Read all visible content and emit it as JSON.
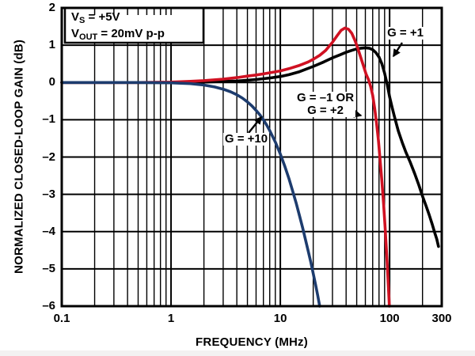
{
  "chart_data": {
    "type": "line",
    "title": "",
    "x_scale": "log",
    "xlim": [
      0.1,
      300
    ],
    "ylim": [
      -6,
      2
    ],
    "xlabel": "FREQUENCY (MHz)",
    "ylabel": "NORMALIZED CLOSED-LOOP GAIN (dB)",
    "grid": "log minor+major verticals, 1 dB horizontals",
    "legend_position": "inline curve labels with arrows",
    "x_ticks": [
      {
        "f": 0.1,
        "label": "0.1"
      },
      {
        "f": 1,
        "label": "1"
      },
      {
        "f": 10,
        "label": "10"
      },
      {
        "f": 100,
        "label": "100"
      },
      {
        "f": 300,
        "label": "300"
      }
    ],
    "y_ticks": [
      {
        "g": 2,
        "label": "2"
      },
      {
        "g": 1,
        "label": "1"
      },
      {
        "g": 0,
        "label": "0"
      },
      {
        "g": -1,
        "label": "–1"
      },
      {
        "g": -2,
        "label": "–2"
      },
      {
        "g": -3,
        "label": "–3"
      },
      {
        "g": -4,
        "label": "–4"
      },
      {
        "g": -5,
        "label": "–5"
      },
      {
        "g": -6,
        "label": "–6"
      }
    ],
    "series": [
      {
        "name": "G = +1",
        "color": "#000000",
        "points_f_MHz_vs_dB": [
          [
            0.1,
            0
          ],
          [
            0.5,
            0
          ],
          [
            1,
            0
          ],
          [
            1.5,
            0
          ],
          [
            2,
            0.01
          ],
          [
            3,
            0.03
          ],
          [
            4,
            0.04
          ],
          [
            5,
            0.06
          ],
          [
            6,
            0.08
          ],
          [
            7,
            0.1
          ],
          [
            8,
            0.12
          ],
          [
            10,
            0.16
          ],
          [
            12,
            0.21
          ],
          [
            15,
            0.29
          ],
          [
            20,
            0.43
          ],
          [
            25,
            0.55
          ],
          [
            30,
            0.66
          ],
          [
            35,
            0.74
          ],
          [
            40,
            0.81
          ],
          [
            45,
            0.86
          ],
          [
            50,
            0.9
          ],
          [
            55,
            0.92
          ],
          [
            60,
            0.93
          ],
          [
            65,
            0.92
          ],
          [
            70,
            0.88
          ],
          [
            75,
            0.8
          ],
          [
            80,
            0.68
          ],
          [
            85,
            0.5
          ],
          [
            90,
            0.25
          ],
          [
            95,
            -0.05
          ],
          [
            100,
            -0.38
          ],
          [
            105,
            -0.65
          ],
          [
            110,
            -0.88
          ],
          [
            120,
            -1.3
          ],
          [
            130,
            -1.6
          ],
          [
            140,
            -1.85
          ],
          [
            155,
            -2.15
          ],
          [
            170,
            -2.45
          ],
          [
            185,
            -2.75
          ],
          [
            200,
            -3.05
          ],
          [
            215,
            -3.3
          ],
          [
            230,
            -3.55
          ],
          [
            245,
            -3.8
          ],
          [
            260,
            -4.05
          ],
          [
            270,
            -4.2
          ],
          [
            280,
            -4.4
          ]
        ]
      },
      {
        "name": "G = –1 OR G = +2",
        "color": "#d01122",
        "points_f_MHz_vs_dB": [
          [
            0.1,
            0
          ],
          [
            0.5,
            0
          ],
          [
            1,
            0.01
          ],
          [
            1.5,
            0.03
          ],
          [
            2,
            0.05
          ],
          [
            3,
            0.09
          ],
          [
            4,
            0.13
          ],
          [
            5,
            0.17
          ],
          [
            6,
            0.2
          ],
          [
            7,
            0.23
          ],
          [
            8,
            0.26
          ],
          [
            10,
            0.31
          ],
          [
            12,
            0.37
          ],
          [
            15,
            0.46
          ],
          [
            18,
            0.55
          ],
          [
            20,
            0.62
          ],
          [
            23,
            0.73
          ],
          [
            26,
            0.86
          ],
          [
            30,
            1.08
          ],
          [
            33,
            1.25
          ],
          [
            36,
            1.4
          ],
          [
            39,
            1.46
          ],
          [
            42,
            1.43
          ],
          [
            45,
            1.32
          ],
          [
            48,
            1.14
          ],
          [
            51,
            0.93
          ],
          [
            55,
            0.63
          ],
          [
            58,
            0.42
          ],
          [
            61,
            0.22
          ],
          [
            64,
            0.08
          ],
          [
            67,
            -0.1
          ],
          [
            70,
            -0.35
          ],
          [
            73,
            -0.7
          ],
          [
            76,
            -1.1
          ],
          [
            79,
            -1.55
          ],
          [
            82,
            -2.1
          ],
          [
            85,
            -2.65
          ],
          [
            88,
            -3.25
          ],
          [
            91,
            -3.9
          ],
          [
            94,
            -4.6
          ],
          [
            96,
            -5.1
          ],
          [
            98,
            -5.6
          ],
          [
            99.5,
            -6
          ]
        ]
      },
      {
        "name": "G = +10",
        "color": "#1d3c6e",
        "points_f_MHz_vs_dB": [
          [
            0.1,
            0
          ],
          [
            0.5,
            0
          ],
          [
            1,
            -0.01
          ],
          [
            1.5,
            -0.03
          ],
          [
            2,
            -0.07
          ],
          [
            2.5,
            -0.12
          ],
          [
            3,
            -0.18
          ],
          [
            3.5,
            -0.25
          ],
          [
            4,
            -0.33
          ],
          [
            4.5,
            -0.42
          ],
          [
            5,
            -0.52
          ],
          [
            5.5,
            -0.63
          ],
          [
            6,
            -0.75
          ],
          [
            6.5,
            -0.87
          ],
          [
            7,
            -1.0
          ],
          [
            7.5,
            -1.14
          ],
          [
            8,
            -1.29
          ],
          [
            9,
            -1.6
          ],
          [
            10,
            -1.92
          ],
          [
            11,
            -2.25
          ],
          [
            12,
            -2.58
          ],
          [
            13,
            -2.92
          ],
          [
            14,
            -3.25
          ],
          [
            15,
            -3.58
          ],
          [
            16,
            -3.9
          ],
          [
            17,
            -4.22
          ],
          [
            18,
            -4.52
          ],
          [
            19,
            -4.82
          ],
          [
            20,
            -5.12
          ],
          [
            21,
            -5.42
          ],
          [
            22,
            -5.72
          ],
          [
            22.9,
            -6
          ]
        ]
      }
    ],
    "annotation_box": {
      "line1_base": "V",
      "line1_sub": "S",
      "line1_rest": " = +5V",
      "line2_base": "V",
      "line2_sub": "OUT",
      "line2_rest": " = 20mV p-p"
    },
    "curve_labels": {
      "g1": "G = +1",
      "g2_line1": "G = –1 OR",
      "g2_line2": "G = +2",
      "g10": "G = +10"
    }
  }
}
